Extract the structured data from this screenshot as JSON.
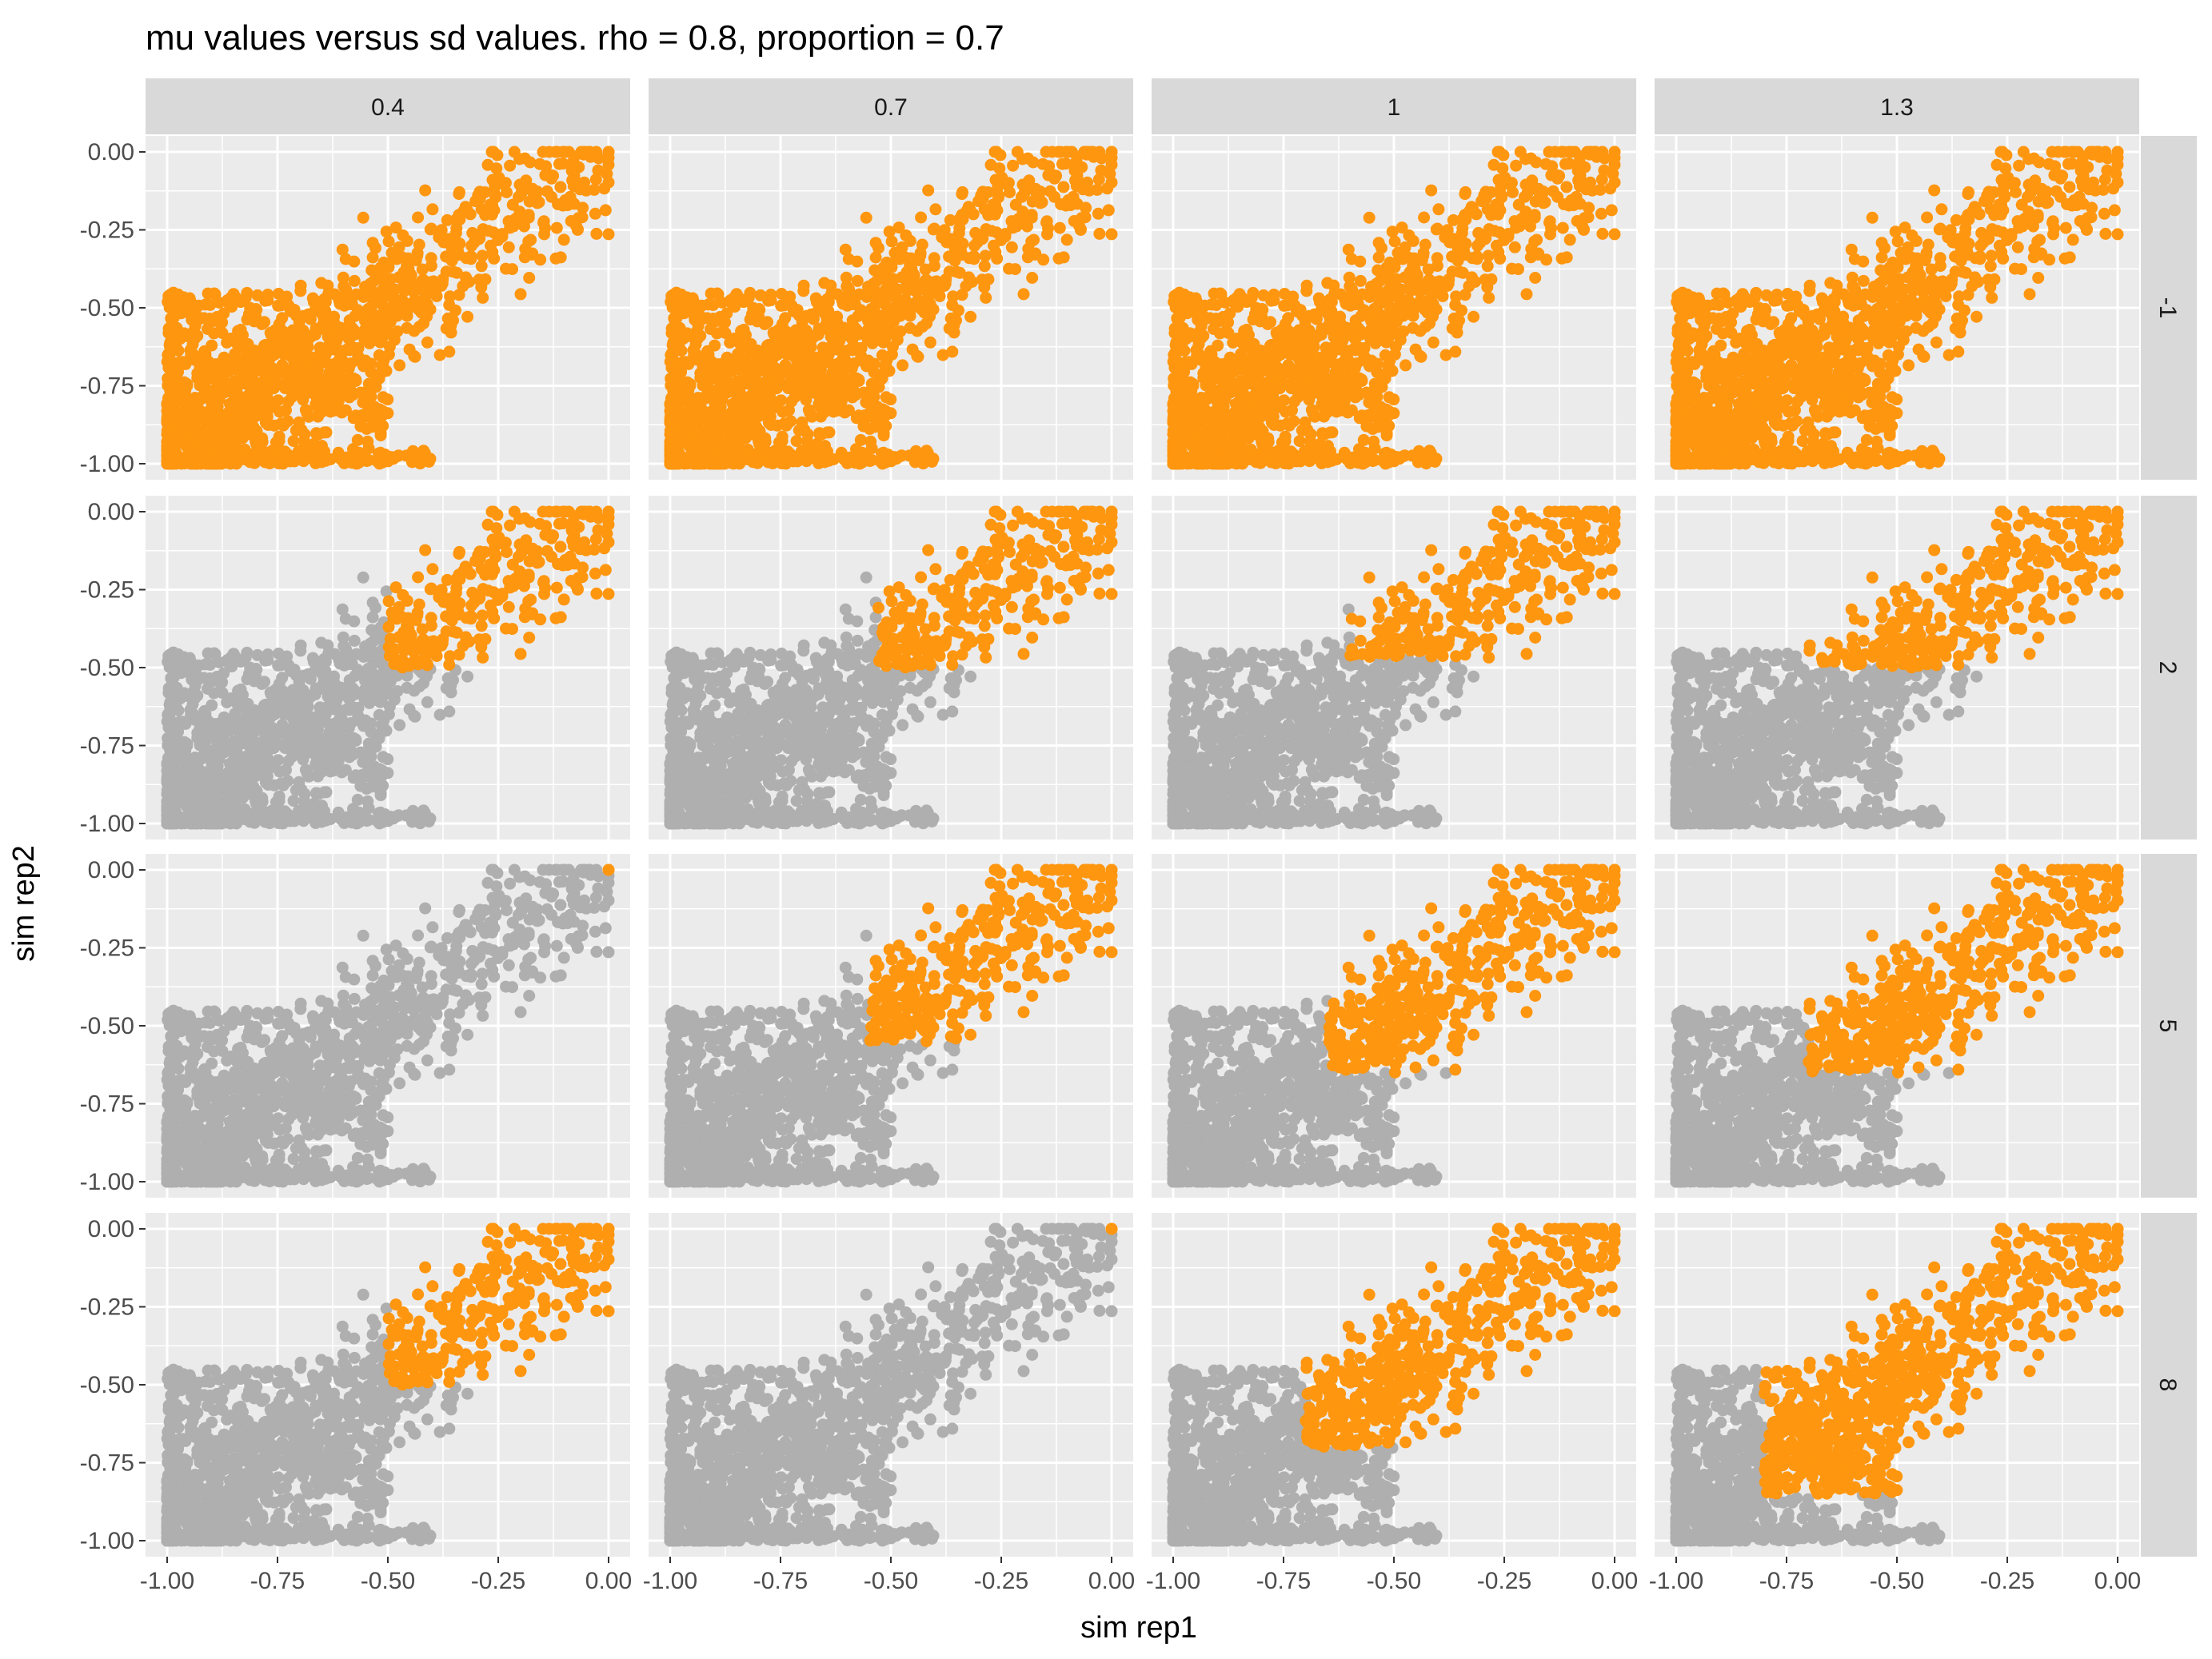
{
  "chart_data": {
    "type": "scatter",
    "title": "mu values versus sd values. rho = 0.8, proportion = 0.7",
    "xlabel": "sim rep1",
    "ylabel": "sim rep2",
    "xlim": [
      -1.0,
      0.0
    ],
    "ylim": [
      -1.0,
      0.0
    ],
    "x_ticks": [
      "-1.00",
      "-0.75",
      "-0.50",
      "-0.25",
      "0.00"
    ],
    "y_ticks": [
      "-1.00",
      "-0.75",
      "-0.50",
      "-0.25",
      "0.00"
    ],
    "facet_columns": [
      "0.4",
      "0.7",
      "1",
      "1.3"
    ],
    "facet_rows": [
      "-1",
      "2",
      "5",
      "8"
    ],
    "grid": true,
    "legend": "none",
    "point_count_per_panel": 1500,
    "colors": {
      "highlighted": "#ff960f",
      "other": "#afafaf",
      "panel_background": "#ebebeb",
      "grid": "#ffffff",
      "strip_background": "#d9d9d9"
    },
    "highlight_regions": [
      [
        {
          "x_min": -1.0,
          "y_min": -1.0
        },
        {
          "x_min": -1.0,
          "y_min": -1.0
        },
        {
          "x_min": -1.0,
          "y_min": -1.0
        },
        {
          "x_min": -1.0,
          "y_min": -1.0
        }
      ],
      [
        {
          "x_min": -0.5,
          "y_min": -0.5
        },
        {
          "x_min": -0.53,
          "y_min": -0.5
        },
        {
          "x_min": -0.6,
          "y_min": -0.47
        },
        {
          "x_min": -0.7,
          "y_min": -0.5
        }
      ],
      [
        {
          "x_min": -0.01,
          "y_min": -0.01
        },
        {
          "x_min": -0.55,
          "y_min": -0.55
        },
        {
          "x_min": -0.65,
          "y_min": -0.65
        },
        {
          "x_min": -0.7,
          "y_min": -0.65
        }
      ],
      [
        {
          "x_min": -0.5,
          "y_min": -0.5
        },
        {
          "x_min": -0.01,
          "y_min": -0.01
        },
        {
          "x_min": -0.7,
          "y_min": -0.7
        },
        {
          "x_min": -0.8,
          "y_min": -0.85
        }
      ]
    ]
  }
}
